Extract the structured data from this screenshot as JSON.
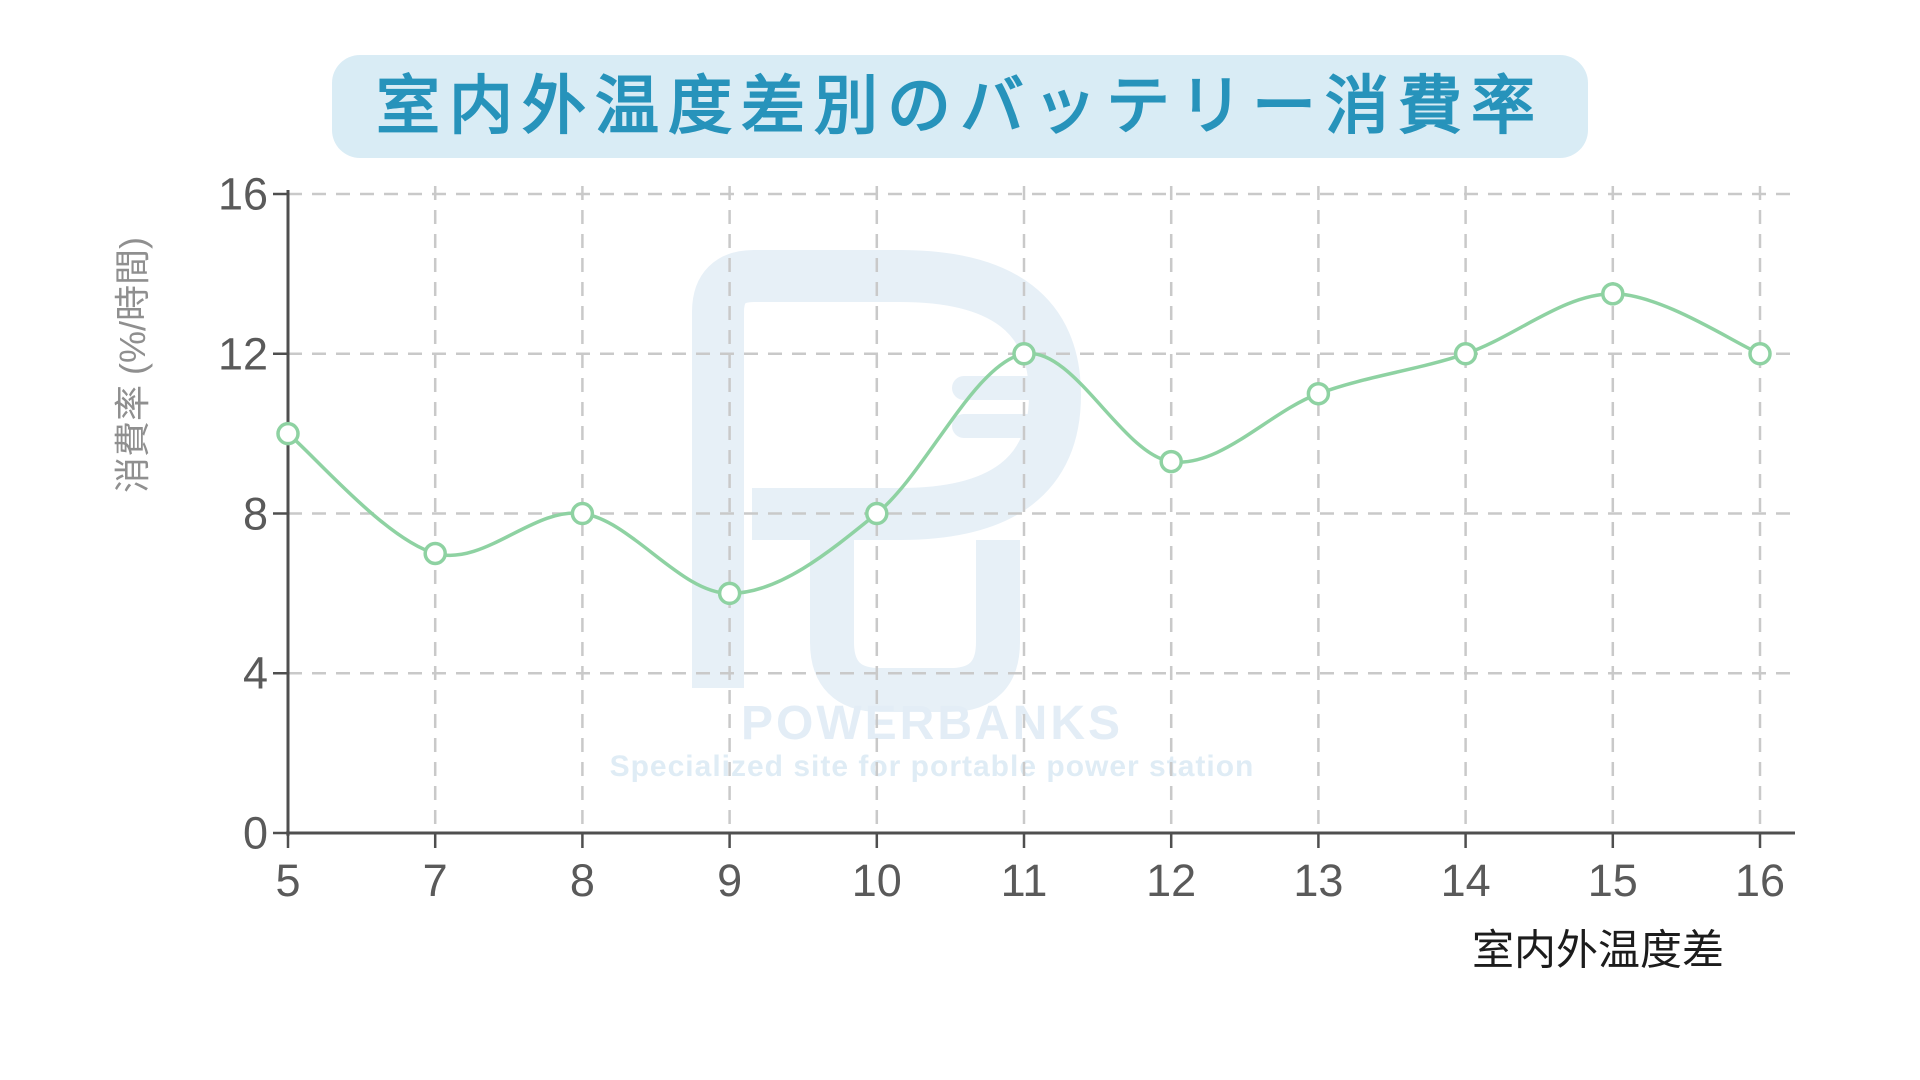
{
  "chart_data": {
    "type": "line",
    "title": "室内外温度差別のバッテリー消費率",
    "xlabel": "室内外温度差",
    "ylabel": "消費率 (%/時間)",
    "categories": [
      5,
      7,
      8,
      9,
      10,
      11,
      12,
      13,
      14,
      15,
      16
    ],
    "values": [
      10,
      7,
      8,
      6,
      8,
      12,
      9.3,
      11,
      12,
      13.5,
      12
    ],
    "ylim": [
      0,
      16
    ],
    "yticks": [
      0,
      4,
      8,
      12,
      16
    ],
    "grid": "dashed-both",
    "legend": "none",
    "marker": "open-circle"
  },
  "watermark": {
    "brand": "POWERBANKS",
    "tagline": "Specialized site for portable power station"
  },
  "colors": {
    "line": "#8ed2a2",
    "marker_fill": "#ffffff",
    "title_text": "#2793bb",
    "title_bg": "#d9ecf5",
    "axis": "#4f4f4f",
    "grid": "#c9c9c9",
    "tick_text": "#5a5a5a",
    "y_title_text": "#8f8f8f",
    "x_title_text": "#1c1c1c",
    "watermark": "#e7f0f7",
    "watermark_text": "#e3edf6"
  }
}
